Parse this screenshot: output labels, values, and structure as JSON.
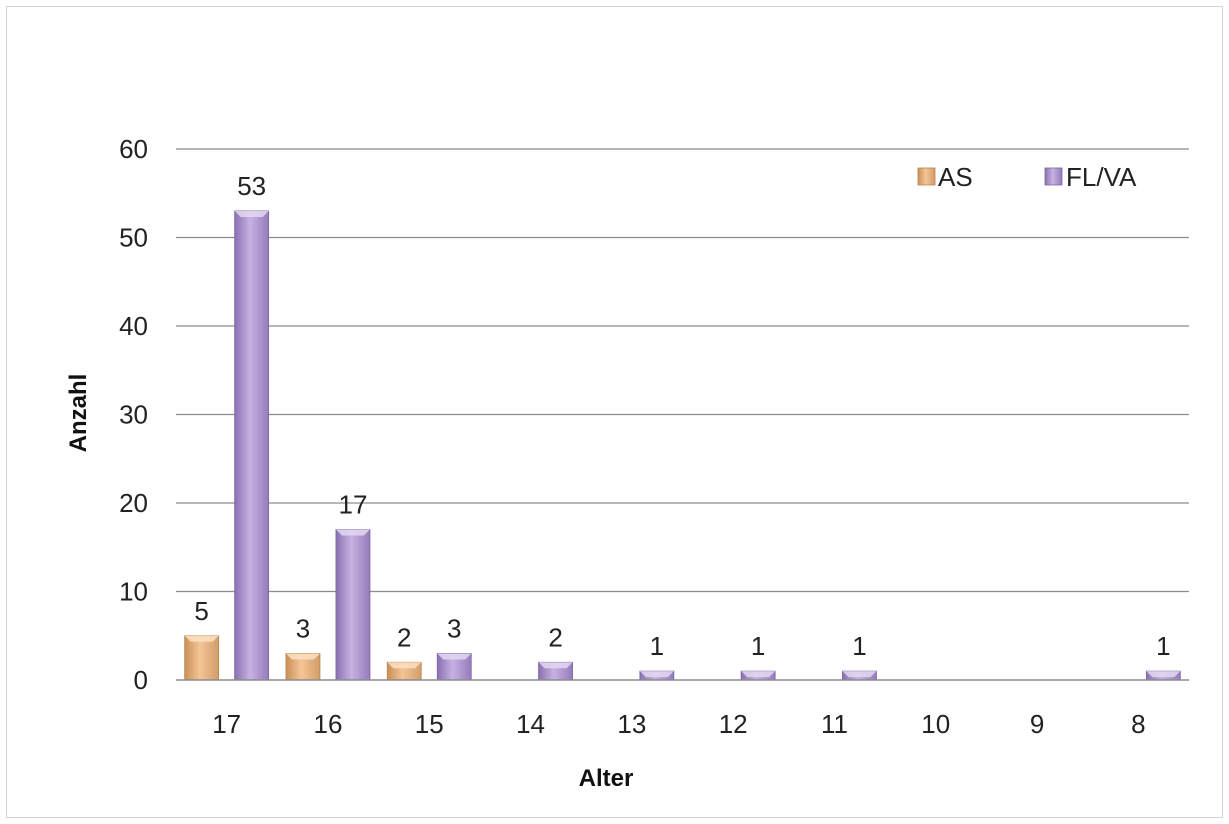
{
  "chart_data": {
    "type": "bar",
    "xlabel": "Alter",
    "ylabel": "Anzahl",
    "ylim": [
      0,
      60
    ],
    "yticks": [
      0,
      10,
      20,
      30,
      40,
      50,
      60
    ],
    "categories": [
      "17",
      "16",
      "15",
      "14",
      "13",
      "12",
      "11",
      "10",
      "9",
      "8"
    ],
    "series": [
      {
        "name": "AS",
        "color": "#f0b27a",
        "values": [
          5,
          3,
          2,
          null,
          null,
          null,
          null,
          null,
          null,
          null
        ]
      },
      {
        "name": "FL/VA",
        "color": "#a58bc8",
        "values": [
          53,
          17,
          3,
          2,
          1,
          1,
          1,
          null,
          null,
          1
        ]
      }
    ],
    "grid": true,
    "legend": "top-right"
  }
}
